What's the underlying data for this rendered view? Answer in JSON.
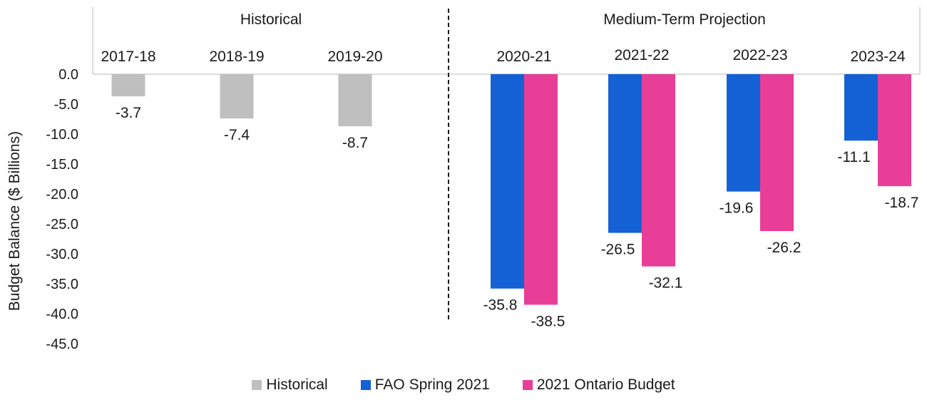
{
  "chart_data": {
    "type": "bar",
    "ylabel": "Budget Balance ($ Billions)",
    "ylim": [
      -45,
      0
    ],
    "yticks": [
      "0.0",
      "-5.0",
      "-10.0",
      "-15.0",
      "-20.0",
      "-25.0",
      "-30.0",
      "-35.0",
      "-40.0",
      "-45.0"
    ],
    "sections": [
      "Historical",
      "Medium-Term Projection"
    ],
    "categories": [
      "2017-18",
      "2018-19",
      "2019-20",
      "2020-21",
      "2021-22",
      "2022-23",
      "2023-24"
    ],
    "series": [
      {
        "name": "Historical",
        "color": "#bfbfbf",
        "values": [
          -3.7,
          -7.4,
          -8.7,
          null,
          null,
          null,
          null
        ],
        "labels": [
          "-3.7",
          "-7.4",
          "-8.7",
          null,
          null,
          null,
          null
        ]
      },
      {
        "name": "FAO Spring 2021",
        "color": "#1461d6",
        "values": [
          null,
          null,
          null,
          -35.8,
          -26.5,
          -19.6,
          -11.1
        ],
        "labels": [
          null,
          null,
          null,
          "-35.8",
          "-26.5",
          "-19.6",
          "-11.1"
        ]
      },
      {
        "name": "2021 Ontario Budget",
        "color": "#e83e97",
        "values": [
          null,
          null,
          null,
          -38.5,
          -32.1,
          -26.2,
          -18.7
        ],
        "labels": [
          null,
          null,
          null,
          "-38.5",
          "-32.1",
          "-26.2",
          "-18.7"
        ]
      }
    ],
    "grid": false,
    "legend_position": "bottom"
  }
}
